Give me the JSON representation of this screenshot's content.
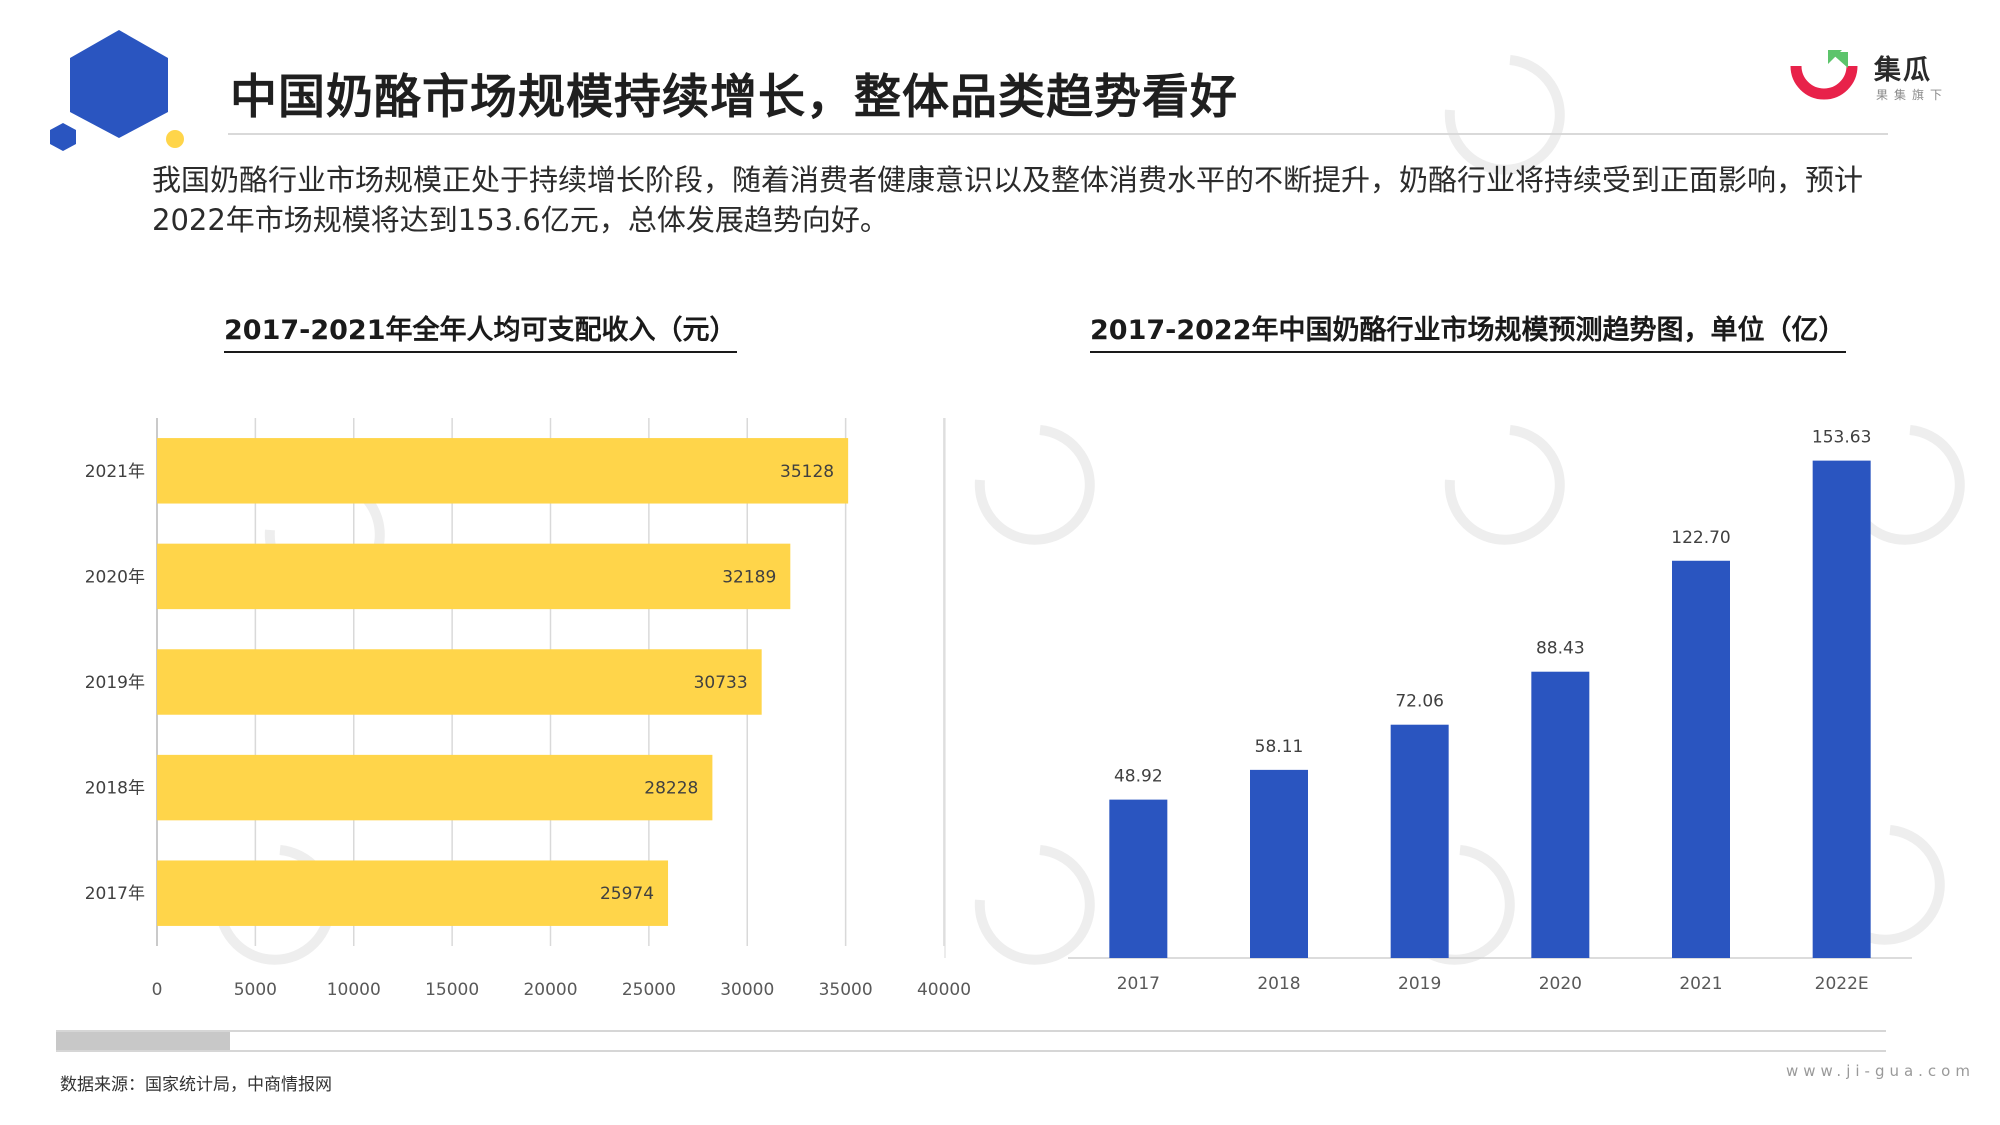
{
  "header": {
    "title": "中国奶酪市场规模持续增长，整体品类趋势看好",
    "logo_name": "集瓜",
    "logo_sub": "果集旗下",
    "colors": {
      "blue": "#2a55c0",
      "yellow": "#ffd54a",
      "logo_red": "#e8224a",
      "logo_green": "#5cc46b"
    }
  },
  "intro": "我国奶酪行业市场规模正处于持续增长阶段，随着消费者健康意识以及整体消费水平的不断提升，奶酪行业将持续受到正面影响，预计2022年市场规模将达到153.6亿元，总体发展趋势向好。",
  "charts": {
    "left_title": "2017-2021年全年人均可支配收入（元）",
    "right_title": "2017-2022年中国奶酪行业市场规模预测趋势图，单位（亿）"
  },
  "chart_data": [
    {
      "type": "bar",
      "orientation": "horizontal",
      "title": "2017-2021年全年人均可支配收入（元）",
      "categories": [
        "2021年",
        "2020年",
        "2019年",
        "2018年",
        "2017年"
      ],
      "values": [
        35128,
        32189,
        30733,
        28228,
        25974
      ],
      "value_labels": [
        "35128",
        "32189",
        "30733",
        "28228",
        "25974"
      ],
      "xlim": [
        0,
        40000
      ],
      "xticks": [
        "0",
        "5000",
        "10000",
        "15000",
        "20000",
        "25000",
        "30000",
        "35000",
        "40000"
      ],
      "grid": true,
      "color": "#ffd54a"
    },
    {
      "type": "bar",
      "orientation": "vertical",
      "title": "2017-2022年中国奶酪行业市场规模预测趋势图，单位（亿）",
      "categories": [
        "2017",
        "2018",
        "2019",
        "2020",
        "2021",
        "2022E"
      ],
      "values": [
        48.92,
        58.11,
        72.06,
        88.43,
        122.7,
        153.63
      ],
      "value_labels": [
        "48.92",
        "58.11",
        "72.06",
        "88.43",
        "122.70",
        "153.63"
      ],
      "ylim": [
        0,
        160
      ],
      "grid": false,
      "color": "#2a55c0"
    }
  ],
  "footer": {
    "source": "数据来源：国家统计局，中商情报网",
    "site": "www.ji-gua.com"
  }
}
